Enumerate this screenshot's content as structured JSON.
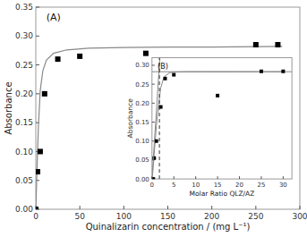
{
  "chart_data": [
    {
      "type": "line",
      "xlabel": "Quinalizarin concentration / (mg L⁻¹)",
      "ylabel": "Absorbance",
      "annotations": [
        "(A)"
      ],
      "series": [
        {
          "type": "line",
          "color": "#888888",
          "x": [
            0,
            0.5,
            1,
            2,
            3,
            5,
            8,
            12,
            20,
            35,
            60,
            100,
            150,
            200,
            280
          ],
          "values": [
            0.0,
            0.025,
            0.05,
            0.1,
            0.145,
            0.205,
            0.24,
            0.258,
            0.27,
            0.276,
            0.279,
            0.28,
            0.281,
            0.281,
            0.282
          ]
        },
        {
          "type": "scatter",
          "color": "#000000",
          "marker": "square",
          "x": [
            0,
            2,
            5,
            10,
            25,
            50,
            125,
            250,
            275
          ],
          "values": [
            0.0,
            0.065,
            0.1,
            0.2,
            0.26,
            0.265,
            0.27,
            0.285,
            0.285
          ]
        }
      ],
      "xlim": [
        0,
        300
      ],
      "ylim": [
        0,
        0.35
      ],
      "xticks": [
        0,
        50,
        100,
        150,
        200,
        250,
        300
      ],
      "yticks": [
        {
          "value": 0,
          "label": "0.00"
        },
        0.05,
        {
          "value": 0.1,
          "label": "0.10"
        },
        0.15,
        {
          "value": 0.2,
          "label": "0.20"
        },
        0.25,
        {
          "value": 0.3,
          "label": "0.30"
        },
        0.35
      ],
      "grid": false
    },
    {
      "type": "line",
      "xlabel": "Molar Ratio QLZ/AZ",
      "ylabel": "Absorbance",
      "annotations": [
        "(B)"
      ],
      "series": [
        {
          "type": "line",
          "color": "#888888",
          "x": [
            0,
            0.2,
            0.5,
            0.8,
            1.0,
            1.5,
            2,
            2.5,
            3,
            4,
            5,
            8,
            12,
            20,
            30
          ],
          "values": [
            0.0,
            0.02,
            0.065,
            0.11,
            0.14,
            0.195,
            0.24,
            0.26,
            0.272,
            0.28,
            0.282,
            0.283,
            0.283,
            0.283,
            0.283
          ]
        },
        {
          "type": "scatter",
          "color": "#000000",
          "marker": "square",
          "x": [
            0,
            0.3,
            0.5,
            1,
            2,
            3,
            5,
            15,
            25,
            30
          ],
          "values": [
            0.0,
            0.0,
            0.055,
            0.1,
            0.19,
            0.265,
            0.275,
            0.22,
            0.284,
            0.284
          ]
        },
        {
          "type": "line",
          "color": "#888888",
          "x": [
            0.0,
            1.8
          ],
          "values": [
            0.0,
            0.32
          ]
        }
      ],
      "hline": {
        "value": 0.283,
        "color": "#888888"
      },
      "vline": {
        "value": 1.7,
        "color": "#333333",
        "line_style": "dashed"
      },
      "xlim": [
        0,
        32
      ],
      "ylim": [
        0,
        0.32
      ],
      "xticks": [
        0,
        5,
        10,
        15,
        20,
        25,
        30
      ],
      "yticks": [
        {
          "value": 0,
          "label": "0.00"
        },
        0.05,
        {
          "value": 0.1,
          "label": "0.10"
        },
        0.15,
        {
          "value": 0.2,
          "label": "0.20"
        },
        0.25,
        {
          "value": 0.3,
          "label": "0.30"
        }
      ],
      "grid": false
    }
  ]
}
